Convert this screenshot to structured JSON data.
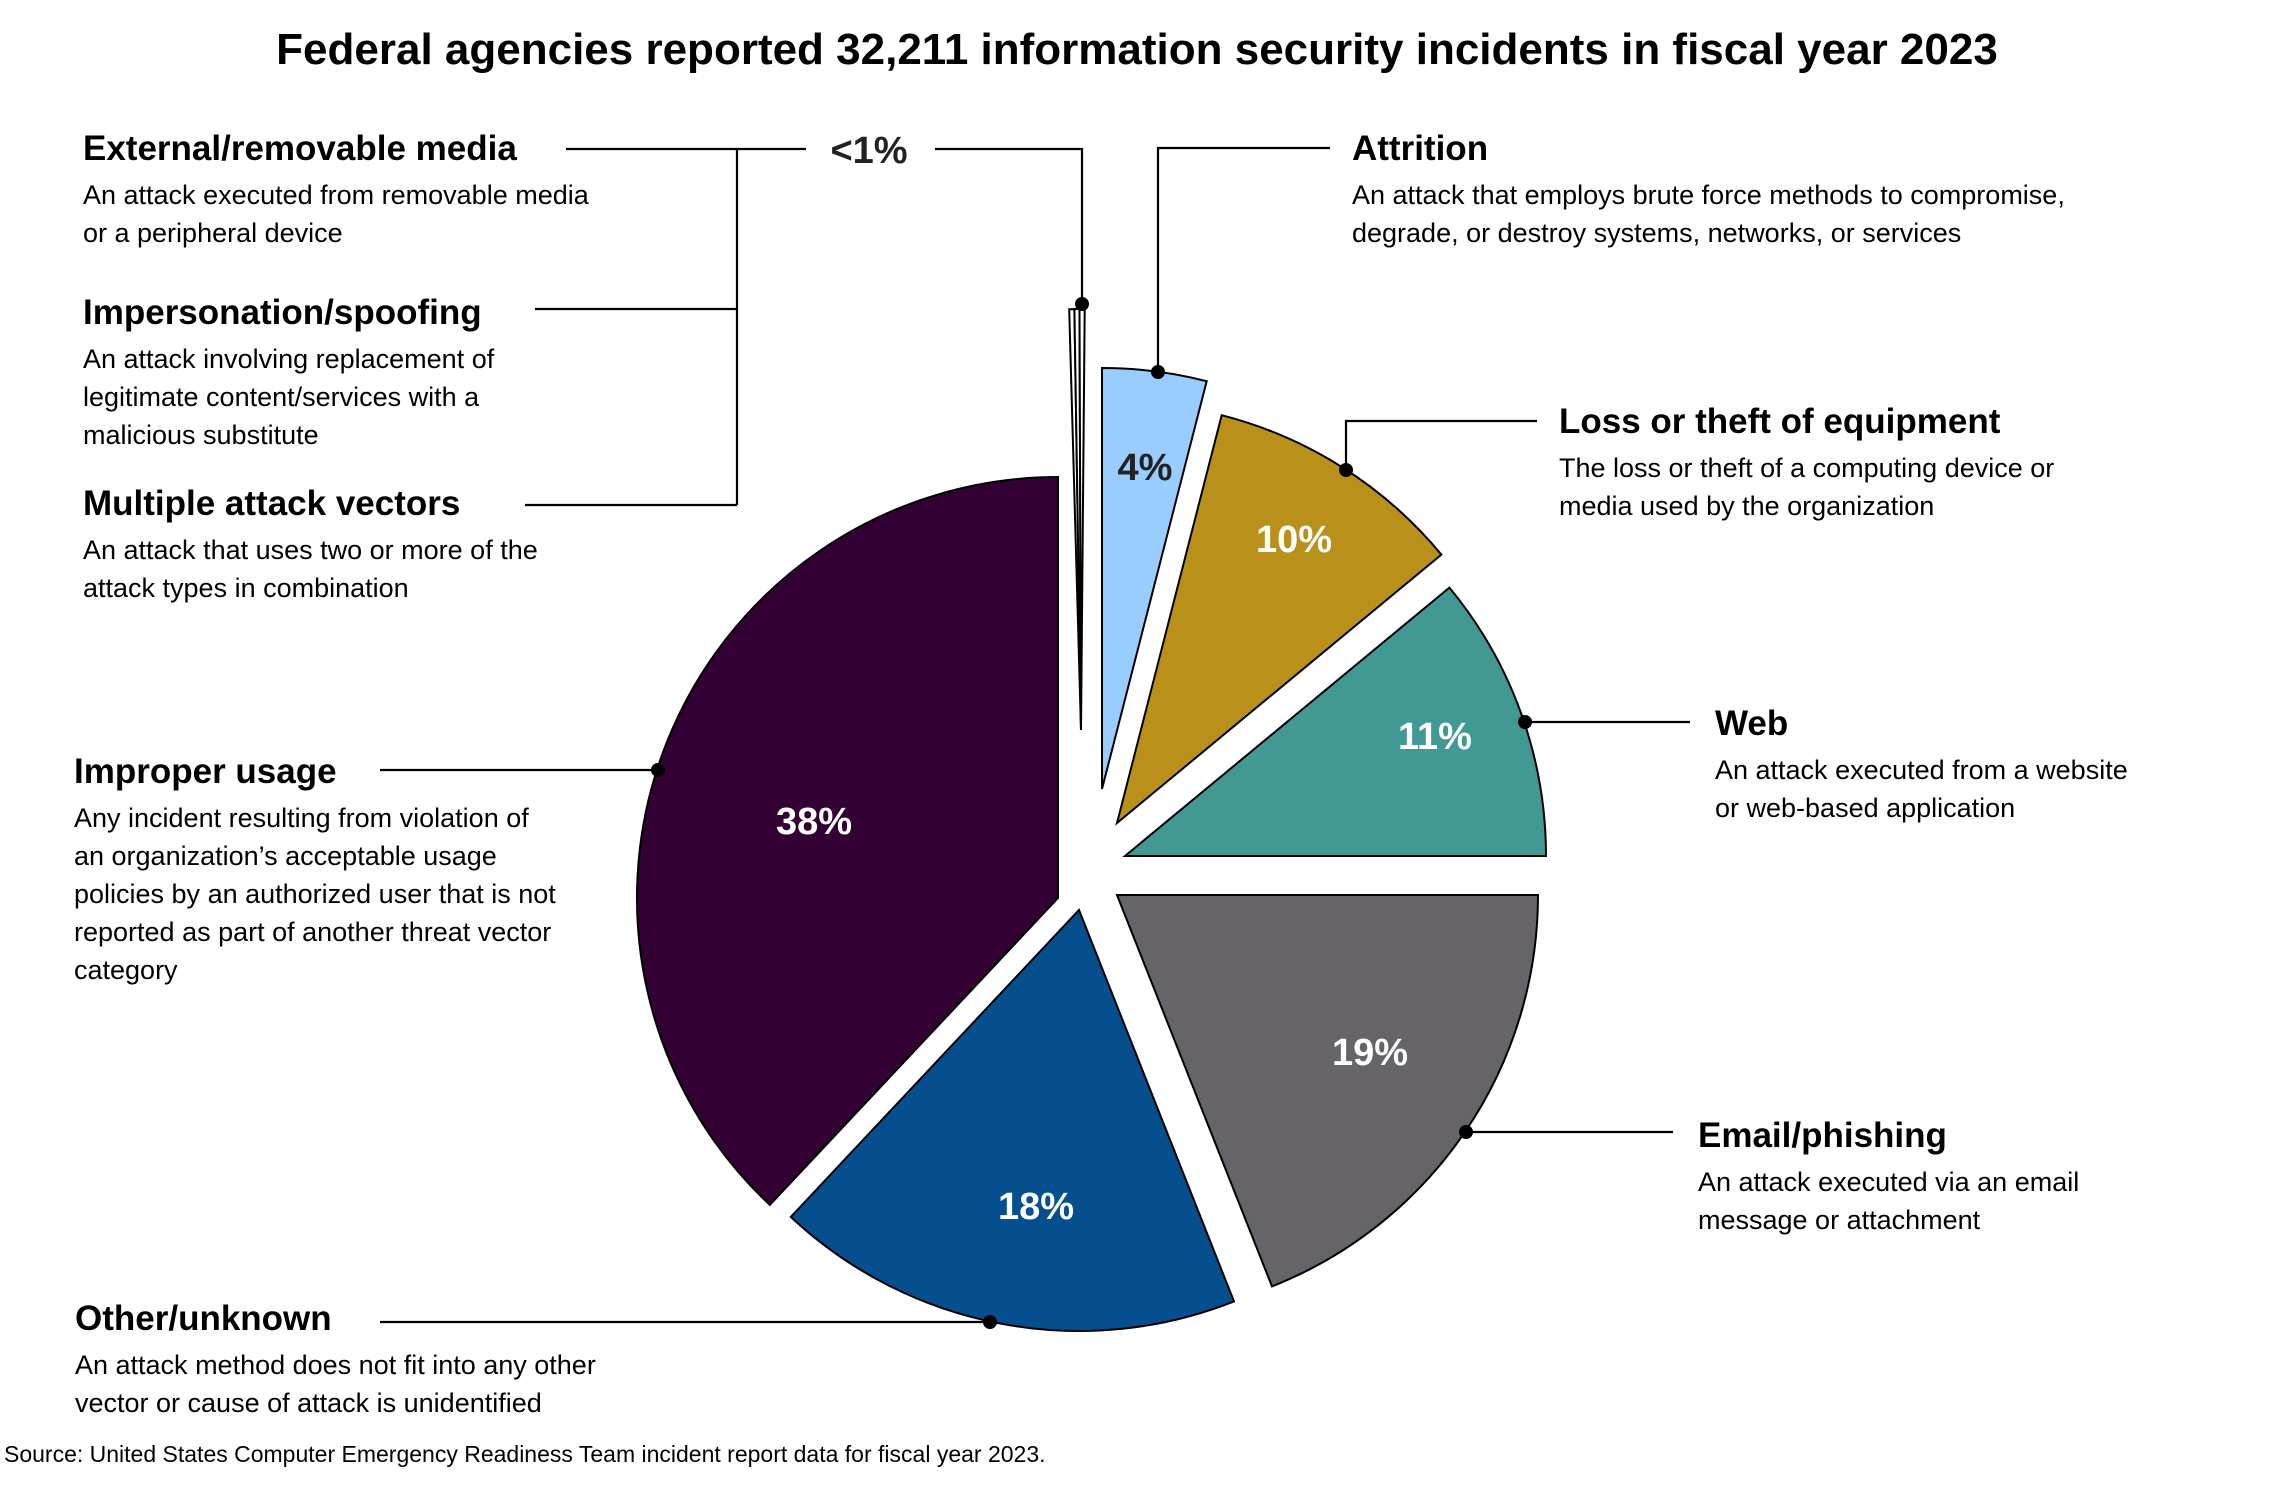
{
  "chart_data": {
    "type": "pie",
    "title": "Federal agencies reported 32,211 information security incidents in fiscal year 2023",
    "source": "Source: United States Computer Emergency Readiness Team incident report data for fiscal year 2023.",
    "slices": [
      {
        "id": "attrition",
        "label": "Attrition",
        "value": 4,
        "value_label": "4%",
        "color": "#99ccff",
        "text_color": "#222222",
        "description": [
          "An attack that employs brute force methods to compromise,",
          "degrade, or destroy systems, networks, or services"
        ]
      },
      {
        "id": "loss-theft",
        "label": "Loss or theft of equipment",
        "value": 10,
        "value_label": "10%",
        "color": "#b8901a",
        "text_color": "#ffffff",
        "description": [
          "The loss or theft of a computing device or",
          "media used by the organization"
        ]
      },
      {
        "id": "web",
        "label": "Web",
        "value": 11,
        "value_label": "11%",
        "color": "#429893",
        "text_color": "#ffffff",
        "description": [
          "An attack executed from a website",
          "or web-based application"
        ]
      },
      {
        "id": "email-phishing",
        "label": "Email/phishing",
        "value": 19,
        "value_label": "19%",
        "color": "#666468",
        "text_color": "#ffffff",
        "description": [
          "An attack executed via an email",
          "message or attachment"
        ]
      },
      {
        "id": "other-unknown",
        "label": "Other/unknown",
        "value": 18,
        "value_label": "18%",
        "color": "#054f8f",
        "text_color": "#ffffff",
        "description": [
          "An attack method does not fit into any other",
          "vector or cause of attack is unidentified"
        ]
      },
      {
        "id": "improper-usage",
        "label": "Improper usage",
        "value": 38,
        "value_label": "38%",
        "color": "#330033",
        "text_color": "#ffffff",
        "description": [
          "Any incident resulting from violation of",
          "an organization’s acceptable usage",
          "policies by an authorized user that is not",
          "reported as part of another threat vector",
          "category"
        ]
      }
    ],
    "small_slices": {
      "value_label": "<1%",
      "color": "#ffffff",
      "text_color": "#222222",
      "items": [
        {
          "id": "external-media",
          "label": "External/removable media",
          "value": 0.3,
          "description": [
            "An attack executed from removable media",
            "or a peripheral device"
          ]
        },
        {
          "id": "impersonation",
          "label": "Impersonation/spoofing",
          "value": 0.3,
          "description": [
            "An attack involving replacement of",
            "legitimate content/services with a",
            "malicious substitute"
          ]
        },
        {
          "id": "multiple-vectors",
          "label": "Multiple attack vectors",
          "value": 0.3,
          "description": [
            "An attack that uses two or more of the",
            "attack types in combination"
          ]
        }
      ]
    }
  }
}
